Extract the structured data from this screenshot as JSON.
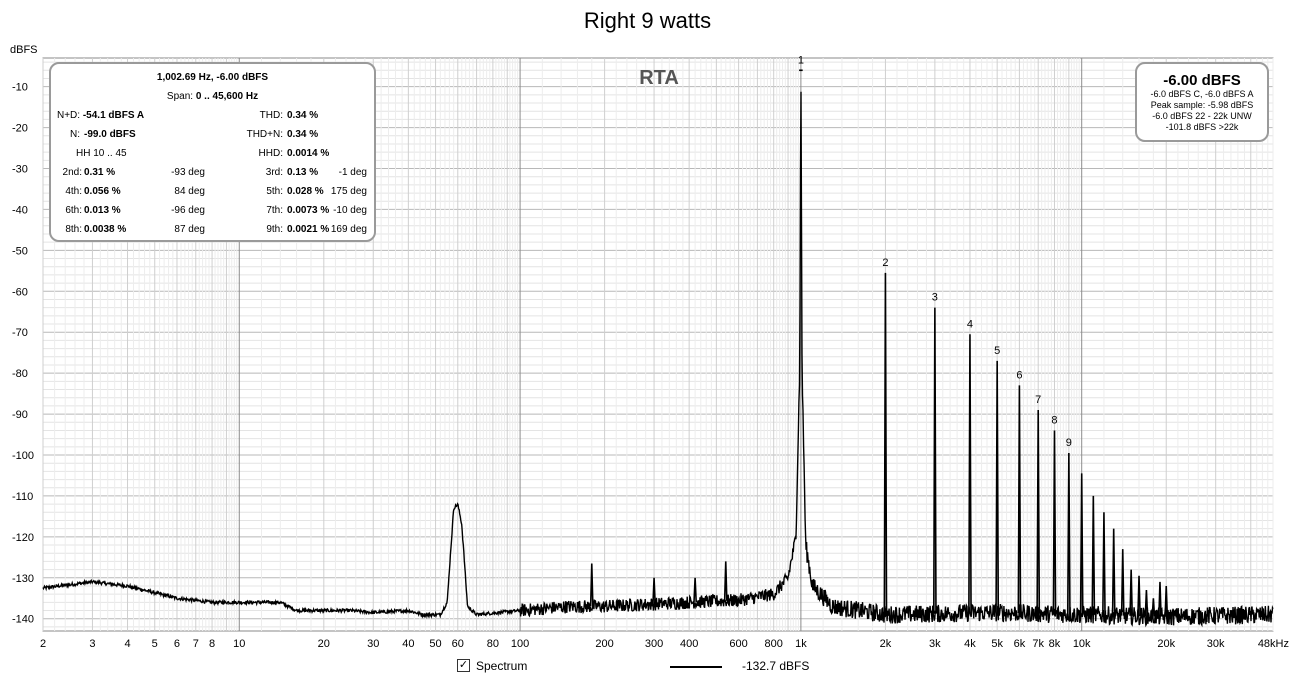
{
  "chart_data": {
    "type": "line",
    "title": "Right 9 watts",
    "xlabel": "",
    "ylabel": "dBFS",
    "x_scale": "log",
    "xlim": [
      2,
      48000
    ],
    "ylim": [
      -143,
      -3
    ],
    "grid": true,
    "overlay_label": "RTA",
    "x_tick_labels": [
      "2",
      "3",
      "4",
      "5",
      "6",
      "7",
      "8",
      "10",
      "20",
      "30",
      "40",
      "50",
      "60",
      "80",
      "100",
      "200",
      "300",
      "400",
      "600",
      "800",
      "1k",
      "2k",
      "3k",
      "4k",
      "5k",
      "6k",
      "7k",
      "8k",
      "10k",
      "20k",
      "30k",
      "48kHz"
    ],
    "y_ticks": [
      -10,
      -20,
      -30,
      -40,
      -50,
      -60,
      -70,
      -80,
      -90,
      -100,
      -110,
      -120,
      -130,
      -140
    ],
    "series": [
      {
        "name": "Spectrum",
        "color": "#000000",
        "baseline": [
          [
            2,
            -132.5
          ],
          [
            3,
            -131
          ],
          [
            4,
            -132
          ],
          [
            6,
            -135
          ],
          [
            8,
            -136
          ],
          [
            10,
            -136
          ],
          [
            14,
            -136
          ],
          [
            16,
            -138
          ],
          [
            25,
            -138
          ],
          [
            30,
            -138.5
          ],
          [
            40,
            -138
          ],
          [
            45,
            -139
          ],
          [
            52,
            -139
          ],
          [
            55,
            -136
          ],
          [
            58,
            -113
          ],
          [
            60,
            -112
          ],
          [
            62,
            -117
          ],
          [
            65,
            -137
          ],
          [
            70,
            -139
          ],
          [
            100,
            -138
          ],
          [
            150,
            -137
          ],
          [
            200,
            -137
          ],
          [
            400,
            -136
          ],
          [
            600,
            -135.5
          ],
          [
            800,
            -134
          ],
          [
            900,
            -130
          ],
          [
            960,
            -120
          ],
          [
            990,
            -80
          ],
          [
            1000,
            -6
          ],
          [
            1010,
            -80
          ],
          [
            1040,
            -122
          ],
          [
            1100,
            -132
          ],
          [
            1300,
            -137
          ],
          [
            2000,
            -139
          ],
          [
            5000,
            -138.5
          ],
          [
            10000,
            -139
          ],
          [
            20000,
            -139.5
          ],
          [
            48000,
            -139
          ]
        ],
        "peaks": [
          {
            "f": 180,
            "db": -126.5
          },
          {
            "f": 300,
            "db": -130
          },
          {
            "f": 420,
            "db": -130
          },
          {
            "f": 540,
            "db": -126
          },
          {
            "f": 1000,
            "db": -6
          },
          {
            "f": 2000,
            "db": -55.5
          },
          {
            "f": 3000,
            "db": -64
          },
          {
            "f": 4000,
            "db": -70.5
          },
          {
            "f": 5000,
            "db": -77
          },
          {
            "f": 6000,
            "db": -83
          },
          {
            "f": 7000,
            "db": -89
          },
          {
            "f": 8000,
            "db": -94
          },
          {
            "f": 9000,
            "db": -99.5
          },
          {
            "f": 10000,
            "db": -104.5
          },
          {
            "f": 11000,
            "db": -110
          },
          {
            "f": 12000,
            "db": -114
          },
          {
            "f": 13000,
            "db": -118
          },
          {
            "f": 14000,
            "db": -123
          },
          {
            "f": 15000,
            "db": -128
          },
          {
            "f": 16000,
            "db": -129.5
          },
          {
            "f": 17000,
            "db": -133
          },
          {
            "f": 18000,
            "db": -135
          },
          {
            "f": 19000,
            "db": -131
          },
          {
            "f": 20000,
            "db": -132
          }
        ]
      }
    ],
    "harmonic_labels": [
      {
        "label": "1",
        "f": 1000,
        "db": -6
      },
      {
        "label": "2",
        "f": 2000,
        "db": -55.5
      },
      {
        "label": "3",
        "f": 3000,
        "db": -64
      },
      {
        "label": "4",
        "f": 4000,
        "db": -70.5
      },
      {
        "label": "5",
        "f": 5000,
        "db": -77
      },
      {
        "label": "6",
        "f": 6000,
        "db": -83
      },
      {
        "label": "7",
        "f": 7000,
        "db": -89
      },
      {
        "label": "8",
        "f": 8000,
        "db": -94
      },
      {
        "label": "9",
        "f": 9000,
        "db": -99.5
      }
    ]
  },
  "info_box": {
    "header": "1,002.69 Hz, -6.00 dBFS",
    "span_label": "Span:",
    "span_value": "0 .. 45,600 Hz",
    "nd_label": "N+D:",
    "nd_value": "-54.1 dBFS A",
    "thd_label": "THD:",
    "thd_value": "0.34 %",
    "n_label": "N:",
    "n_value": "-99.0 dBFS",
    "thdn_label": "THD+N:",
    "thdn_value": "0.34 %",
    "hh_label": "HH 10 .. 45",
    "hhd_label": "HHD:",
    "hhd_value": "0.0014 %",
    "harmonics": [
      {
        "l1": "2nd:",
        "v1": "0.31 %",
        "d1": "-93 deg",
        "l2": "3rd:",
        "v2": "0.13 %",
        "d2": "-1 deg"
      },
      {
        "l1": "4th:",
        "v1": "0.056 %",
        "d1": "84 deg",
        "l2": "5th:",
        "v2": "0.028 %",
        "d2": "175 deg"
      },
      {
        "l1": "6th:",
        "v1": "0.013 %",
        "d1": "-96 deg",
        "l2": "7th:",
        "v2": "0.0073 %",
        "d2": "-10 deg"
      },
      {
        "l1": "8th:",
        "v1": "0.0038 %",
        "d1": "87 deg",
        "l2": "9th:",
        "v2": "0.0021 %",
        "d2": "169 deg"
      }
    ]
  },
  "level_box": {
    "main": "-6.00 dBFS",
    "line1": "-6.0 dBFS C, -6.0 dBFS A",
    "line2": "Peak sample: -5.98 dBFS",
    "line3": "-6.0 dBFS 22 - 22k UNW",
    "line4": "-101.8 dBFS >22k"
  },
  "legend": {
    "checkbox_mark": "✓",
    "label": "Spectrum",
    "value": "-132.7 dBFS"
  }
}
